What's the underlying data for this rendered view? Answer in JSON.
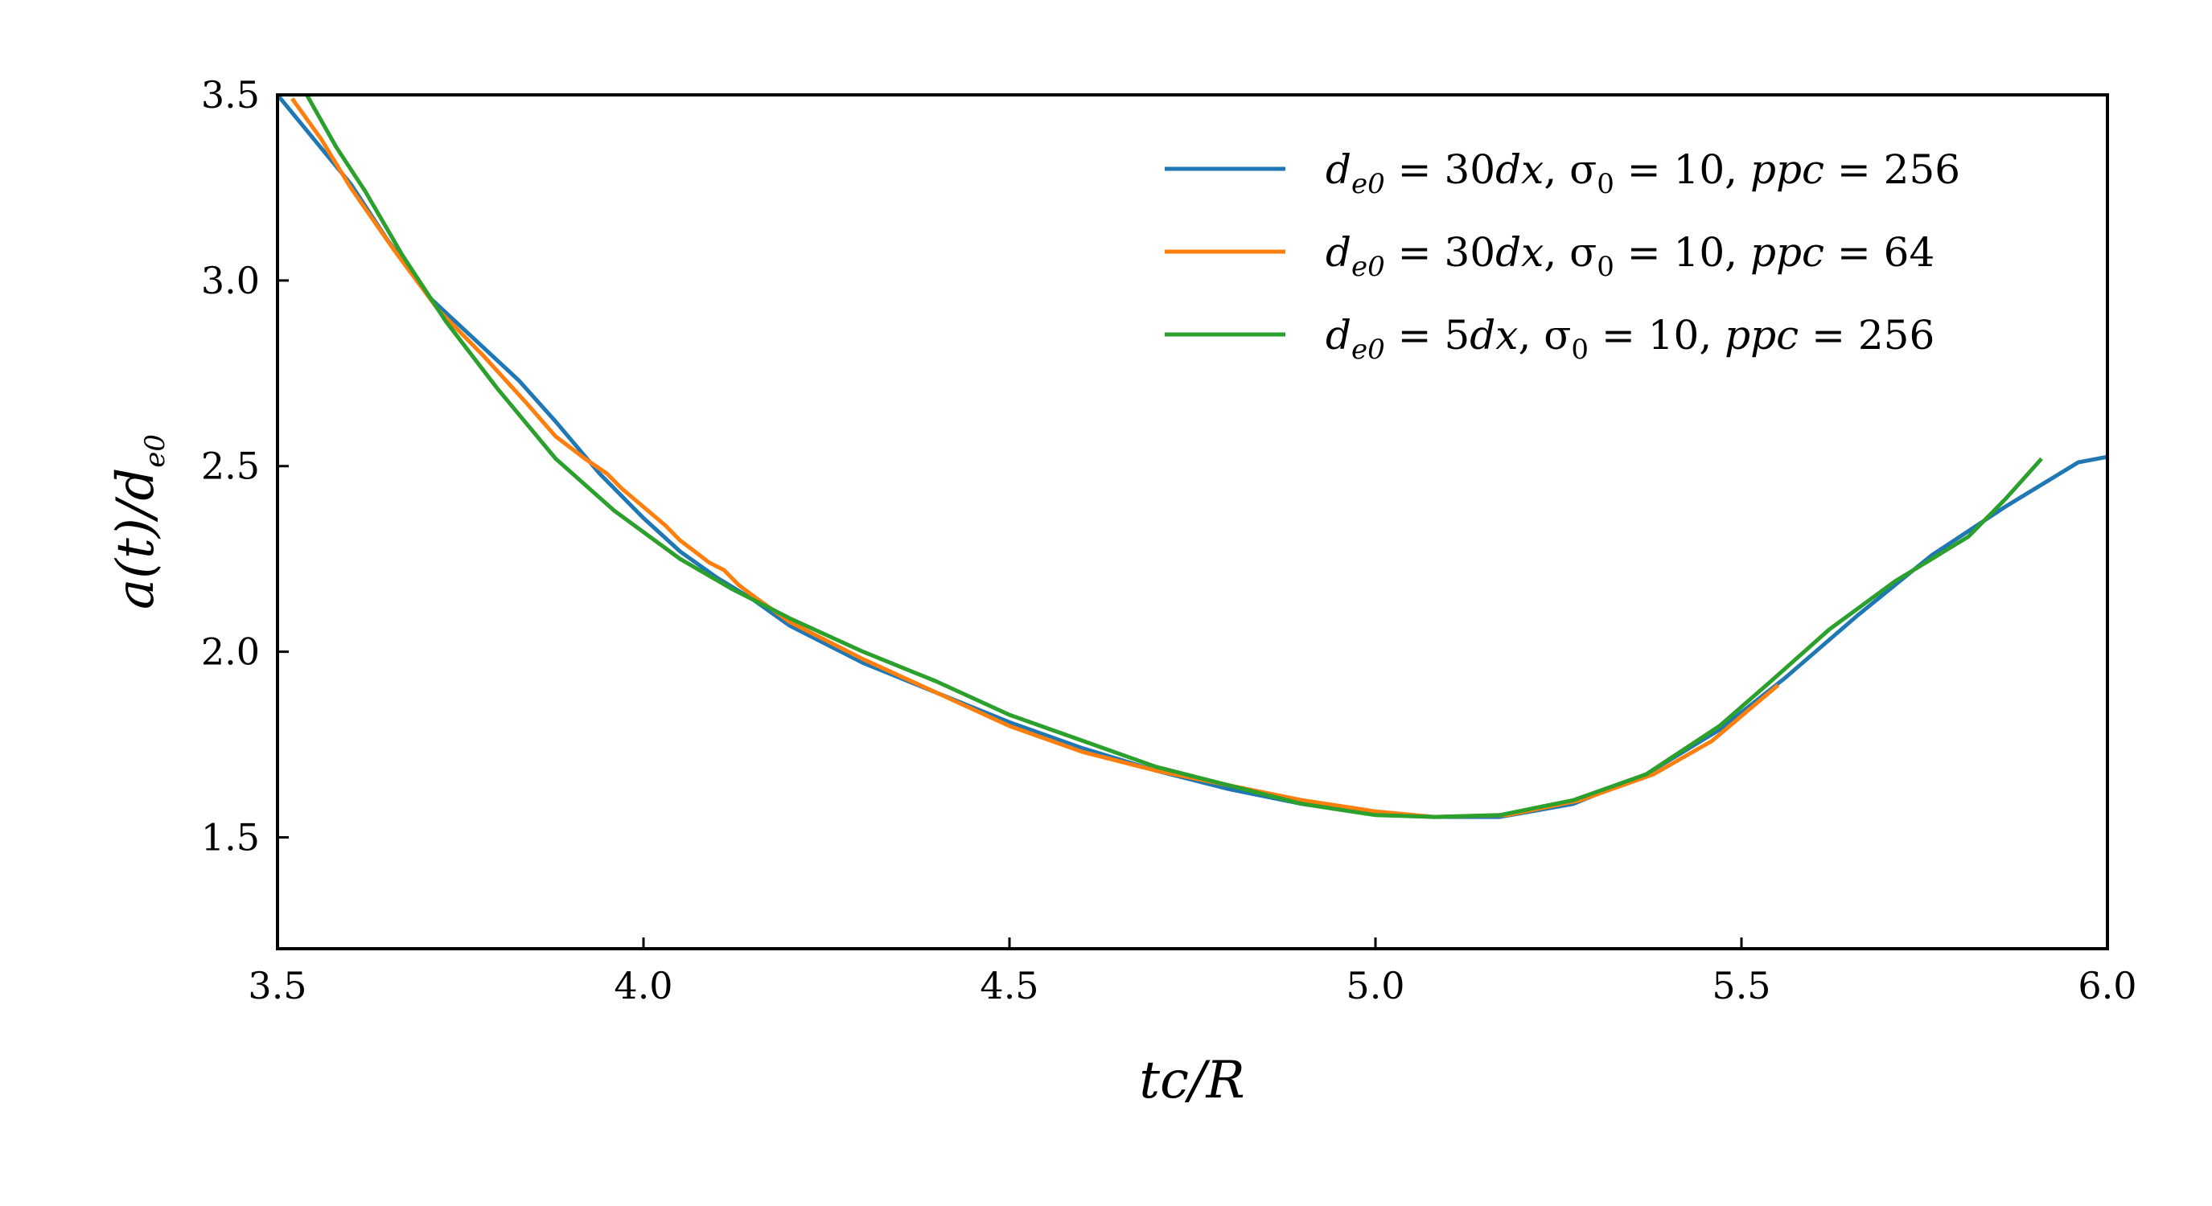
{
  "chart_data": {
    "type": "line",
    "xlabel": "tc/R",
    "ylabel": "a(t)/d_e0",
    "xlim": [
      3.5,
      6.0
    ],
    "ylim": [
      1.2,
      3.5
    ],
    "xticks": [
      "3.5",
      "4.0",
      "4.5",
      "5.0",
      "5.5",
      "6.0"
    ],
    "yticks": [
      "1.5",
      "2.0",
      "2.5",
      "3.0",
      "3.5"
    ],
    "grid": false,
    "legend_position": "top-right",
    "series": [
      {
        "name": "d_e0 = 30dx,  σ_0 = 10,  ppc = 256",
        "color": "#1f77b4",
        "x": [
          3.5,
          3.55,
          3.6,
          3.65,
          3.71,
          3.77,
          3.83,
          3.88,
          3.94,
          4.0,
          4.05,
          4.1,
          4.15,
          4.2,
          4.3,
          4.4,
          4.5,
          4.6,
          4.7,
          4.8,
          4.9,
          5.0,
          5.08,
          5.17,
          5.27,
          5.37,
          5.47,
          5.56,
          5.66,
          5.76,
          5.86,
          5.96,
          6.0
        ],
        "y": [
          3.5,
          3.38,
          3.26,
          3.11,
          2.95,
          2.84,
          2.73,
          2.62,
          2.48,
          2.36,
          2.27,
          2.2,
          2.14,
          2.07,
          1.97,
          1.89,
          1.81,
          1.74,
          1.68,
          1.63,
          1.59,
          1.565,
          1.555,
          1.555,
          1.59,
          1.67,
          1.79,
          1.93,
          2.1,
          2.26,
          2.39,
          2.51,
          2.525
        ]
      },
      {
        "name": "d_e0 = 30dx,  σ_0 = 10,  ppc = 64",
        "color": "#ff7f0e",
        "x": [
          3.52,
          3.56,
          3.6,
          3.66,
          3.72,
          3.78,
          3.84,
          3.88,
          3.92,
          3.95,
          3.97,
          4.0,
          4.03,
          4.05,
          4.07,
          4.09,
          4.11,
          4.13,
          4.15,
          4.2,
          4.3,
          4.4,
          4.5,
          4.6,
          4.7,
          4.8,
          4.9,
          5.0,
          5.08,
          5.18,
          5.28,
          5.38,
          5.46,
          5.55
        ],
        "y": [
          3.49,
          3.38,
          3.25,
          3.08,
          2.92,
          2.8,
          2.67,
          2.58,
          2.52,
          2.48,
          2.44,
          2.39,
          2.34,
          2.3,
          2.27,
          2.24,
          2.22,
          2.18,
          2.15,
          2.08,
          1.98,
          1.89,
          1.8,
          1.73,
          1.68,
          1.64,
          1.6,
          1.57,
          1.555,
          1.56,
          1.6,
          1.67,
          1.76,
          1.91
        ]
      },
      {
        "name": "d_e0 = 5dx,  σ_0 = 10,  ppc = 256",
        "color": "#2ca02c",
        "x": [
          3.54,
          3.58,
          3.62,
          3.67,
          3.73,
          3.8,
          3.88,
          3.96,
          4.05,
          4.12,
          4.2,
          4.3,
          4.4,
          4.5,
          4.6,
          4.7,
          4.8,
          4.9,
          5.0,
          5.08,
          5.17,
          5.27,
          5.37,
          5.47,
          5.54,
          5.62,
          5.71,
          5.81,
          5.86,
          5.91
        ],
        "y": [
          3.5,
          3.36,
          3.24,
          3.07,
          2.89,
          2.71,
          2.52,
          2.38,
          2.25,
          2.17,
          2.09,
          2.0,
          1.92,
          1.83,
          1.76,
          1.69,
          1.64,
          1.59,
          1.56,
          1.555,
          1.56,
          1.6,
          1.67,
          1.8,
          1.92,
          2.06,
          2.19,
          2.31,
          2.41,
          2.52
        ]
      }
    ]
  }
}
